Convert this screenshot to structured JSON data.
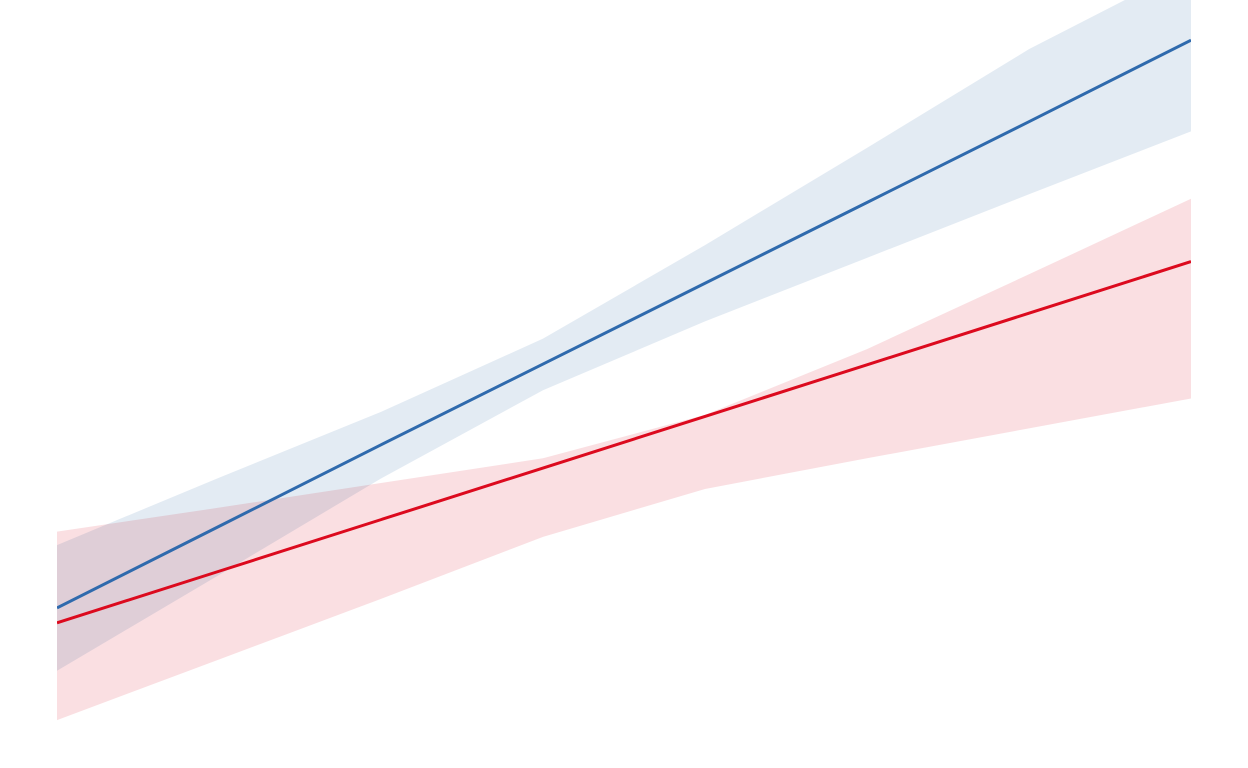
{
  "chart_data": {
    "type": "line",
    "title": "",
    "xlabel": "",
    "ylabel": "",
    "x": [
      0,
      1,
      2,
      3,
      4,
      5,
      6,
      7
    ],
    "xlim": [
      0,
      7
    ],
    "ylim": [
      0,
      100
    ],
    "grid": false,
    "axes_visible": false,
    "series": [
      {
        "color": "#2f6aad",
        "band_color": "#dee7f1",
        "values": [
          19.8,
          30.7,
          41.6,
          52.4,
          63.2,
          74.0,
          84.8,
          95.7
        ],
        "lower": [
          11.4,
          24.2,
          37.1,
          48.9,
          58.1,
          66.6,
          75.1,
          83.5
        ],
        "upper": [
          28.2,
          37.2,
          46.0,
          55.8,
          68.3,
          81.3,
          94.5,
          105.6
        ]
      },
      {
        "color": "#dc0a1e",
        "band_color": "#f9d9dd",
        "values": [
          17.8,
          24.7,
          31.6,
          38.5,
          45.4,
          52.3,
          59.2,
          66.1
        ],
        "lower": [
          4.8,
          12.9,
          21.0,
          29.3,
          35.7,
          39.8,
          43.8,
          47.8
        ],
        "upper": [
          30.0,
          33.2,
          36.5,
          39.8,
          45.6,
          54.4,
          64.4,
          74.5
        ]
      }
    ]
  }
}
